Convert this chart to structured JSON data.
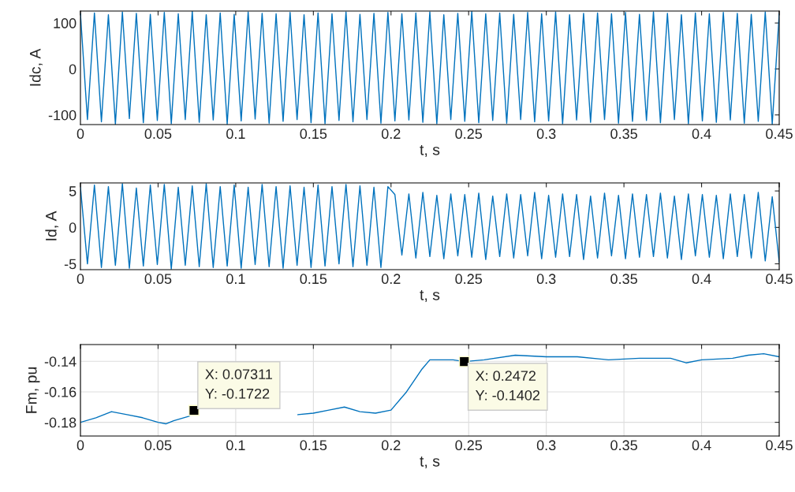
{
  "chart_data": [
    {
      "type": "line",
      "xlabel": "t, s",
      "ylabel": "Idc, A",
      "xlim": [
        0,
        0.45
      ],
      "ylim": [
        -121,
        126
      ],
      "xticks": [
        0,
        0.05,
        0.1,
        0.15,
        0.2,
        0.25,
        0.3,
        0.35,
        0.4,
        0.45
      ],
      "yticks": [
        -100,
        0,
        100
      ],
      "grid": false,
      "series": [
        {
          "color": "#0072bd",
          "x": [
            0,
            0.0045,
            0.009,
            0.0135,
            0.018,
            0.0225,
            0.027,
            0.0315,
            0.036,
            0.0405,
            0.045,
            0.0495,
            0.054,
            0.0585,
            0.063,
            0.0675,
            0.072,
            0.0765,
            0.081,
            0.0855,
            0.09,
            0.0945,
            0.099,
            0.1035,
            0.108,
            0.1125,
            0.117,
            0.1215,
            0.126,
            0.1305,
            0.135,
            0.1395,
            0.144,
            0.1485,
            0.153,
            0.1575,
            0.162,
            0.1665,
            0.171,
            0.1755,
            0.18,
            0.1845,
            0.189,
            0.1935,
            0.198,
            0.2025,
            0.207,
            0.2115,
            0.216,
            0.2205,
            0.225,
            0.2295,
            0.234,
            0.2385,
            0.243,
            0.2475,
            0.252,
            0.2565,
            0.261,
            0.2655,
            0.27,
            0.2745,
            0.279,
            0.2835,
            0.288,
            0.2925,
            0.297,
            0.3015,
            0.306,
            0.3105,
            0.315,
            0.3195,
            0.324,
            0.3285,
            0.333,
            0.3375,
            0.342,
            0.3465,
            0.351,
            0.3555,
            0.36,
            0.3645,
            0.369,
            0.3735,
            0.378,
            0.3825,
            0.387,
            0.3915,
            0.396,
            0.4005,
            0.405,
            0.4095,
            0.414,
            0.4185,
            0.423,
            0.4275,
            0.432,
            0.4365,
            0.441,
            0.4455,
            0.45
          ],
          "values": [
            120,
            -110,
            122,
            -115,
            118,
            -120,
            124,
            -108,
            121,
            -117,
            119,
            -112,
            123,
            -119,
            120,
            -110,
            125,
            -116,
            118,
            -111,
            122,
            -120,
            119,
            -113,
            124,
            -109,
            121,
            -118,
            120,
            -114,
            123,
            -110,
            118,
            -117,
            122,
            -119,
            120,
            -112,
            124,
            -115,
            119,
            -110,
            121,
            -118,
            123,
            -113,
            120,
            -111,
            122,
            -116,
            124,
            -119,
            118,
            -110,
            121,
            -114,
            125,
            -117,
            120,
            -112,
            122,
            -118,
            119,
            -110,
            123,
            -115,
            120,
            -113,
            124,
            -119,
            118,
            -111,
            121,
            -116,
            122,
            -110,
            120,
            -118,
            123,
            -114,
            119,
            -112,
            124,
            -117,
            121,
            -110,
            118,
            -119,
            122,
            -113,
            120,
            -116,
            123,
            -111,
            121,
            -118,
            119,
            -114,
            124,
            -120,
            120
          ]
        }
      ]
    },
    {
      "type": "line",
      "xlabel": "t, s",
      "ylabel": "Id, A",
      "xlim": [
        0,
        0.45
      ],
      "ylim": [
        -5.8,
        6.1
      ],
      "xticks": [
        0,
        0.05,
        0.1,
        0.15,
        0.2,
        0.25,
        0.3,
        0.35,
        0.4,
        0.45
      ],
      "yticks": [
        -5,
        0,
        5
      ],
      "grid": false,
      "series": [
        {
          "color": "#0072bd",
          "x": [
            0,
            0.0045,
            0.009,
            0.0135,
            0.018,
            0.0225,
            0.027,
            0.0315,
            0.036,
            0.0405,
            0.045,
            0.0495,
            0.054,
            0.0585,
            0.063,
            0.0675,
            0.072,
            0.0765,
            0.081,
            0.0855,
            0.09,
            0.0945,
            0.099,
            0.1035,
            0.108,
            0.1125,
            0.117,
            0.1215,
            0.126,
            0.1305,
            0.135,
            0.1395,
            0.144,
            0.1485,
            0.153,
            0.1575,
            0.162,
            0.1665,
            0.171,
            0.1755,
            0.18,
            0.1845,
            0.189,
            0.1935,
            0.198,
            0.2025,
            0.207,
            0.2115,
            0.216,
            0.2205,
            0.225,
            0.2295,
            0.234,
            0.2385,
            0.243,
            0.2475,
            0.252,
            0.2565,
            0.261,
            0.2655,
            0.27,
            0.2745,
            0.279,
            0.2835,
            0.288,
            0.2925,
            0.297,
            0.3015,
            0.306,
            0.3105,
            0.315,
            0.3195,
            0.324,
            0.3285,
            0.333,
            0.3375,
            0.342,
            0.3465,
            0.351,
            0.3555,
            0.36,
            0.3645,
            0.369,
            0.3735,
            0.378,
            0.3825,
            0.387,
            0.3915,
            0.396,
            0.4005,
            0.405,
            0.4095,
            0.414,
            0.4185,
            0.423,
            0.4275,
            0.432,
            0.4365,
            0.441,
            0.4455,
            0.45
          ],
          "values": [
            5.5,
            -5.0,
            5.8,
            -5.5,
            5.6,
            -5.2,
            6.0,
            -5.6,
            5.4,
            -5.3,
            5.8,
            -5.1,
            5.9,
            -5.7,
            5.5,
            -5.2,
            5.7,
            -5.4,
            6.0,
            -5.5,
            5.6,
            -5.3,
            5.8,
            -5.6,
            5.5,
            -5.1,
            5.9,
            -5.4,
            5.6,
            -5.6,
            5.7,
            -5.2,
            5.5,
            -5.5,
            5.8,
            -5.3,
            5.6,
            -5.0,
            5.9,
            -5.4,
            5.7,
            -5.2,
            5.5,
            -5.5,
            5.6,
            4.5,
            -3.8,
            4.6,
            -4.2,
            4.8,
            -4.0,
            4.4,
            -4.3,
            4.6,
            -3.9,
            4.5,
            -4.1,
            4.7,
            -4.4,
            4.3,
            -4.0,
            4.6,
            -4.2,
            4.5,
            -3.9,
            4.8,
            -4.3,
            4.4,
            -4.1,
            4.6,
            -4.0,
            4.5,
            -4.4,
            4.3,
            -4.2,
            4.7,
            -3.9,
            4.4,
            -4.3,
            4.6,
            -4.1,
            4.5,
            -4.0,
            4.7,
            -4.2,
            4.3,
            -4.4,
            4.6,
            -3.9,
            4.5,
            -4.1,
            4.4,
            -4.3,
            4.6,
            -4.0,
            4.5,
            -4.2,
            4.8,
            -4.6,
            4.2,
            -4.8
          ]
        }
      ]
    },
    {
      "type": "line",
      "xlabel": "t, s",
      "ylabel": "Fm, pu",
      "xlim": [
        0,
        0.45
      ],
      "ylim": [
        -0.189,
        -0.129
      ],
      "xticks": [
        0,
        0.05,
        0.1,
        0.15,
        0.2,
        0.25,
        0.3,
        0.35,
        0.4,
        0.45
      ],
      "yticks": [
        -0.18,
        -0.16,
        -0.14
      ],
      "grid": true,
      "series": [
        {
          "color": "#0072bd",
          "x": [
            0,
            0.01,
            0.02,
            0.03,
            0.04,
            0.05,
            0.055,
            0.06,
            0.07,
            0.07311,
            0.08,
            0.14,
            0.15,
            0.16,
            0.17,
            0.18,
            0.19,
            0.2,
            0.21,
            0.22,
            0.225,
            0.24,
            0.2472,
            0.26,
            0.28,
            0.3,
            0.32,
            0.34,
            0.36,
            0.38,
            0.39,
            0.4,
            0.42,
            0.43,
            0.44,
            0.45
          ],
          "values": [
            -0.18,
            -0.177,
            -0.173,
            -0.175,
            -0.177,
            -0.18,
            -0.181,
            -0.179,
            -0.176,
            -0.1722,
            null,
            -0.175,
            -0.174,
            -0.172,
            -0.17,
            -0.173,
            -0.174,
            -0.172,
            -0.16,
            -0.145,
            -0.139,
            -0.139,
            -0.1402,
            -0.139,
            -0.136,
            -0.137,
            -0.137,
            -0.139,
            -0.138,
            -0.138,
            -0.141,
            -0.139,
            -0.138,
            -0.136,
            -0.135,
            -0.137
          ]
        }
      ],
      "annotations": [
        {
          "text": "X: 0.07311\nY: -0.1722",
          "x": 0.07311,
          "y": -0.1722
        },
        {
          "text": "X: 0.2472\nY: -0.1402",
          "x": 0.2472,
          "y": -0.1402
        }
      ]
    }
  ]
}
